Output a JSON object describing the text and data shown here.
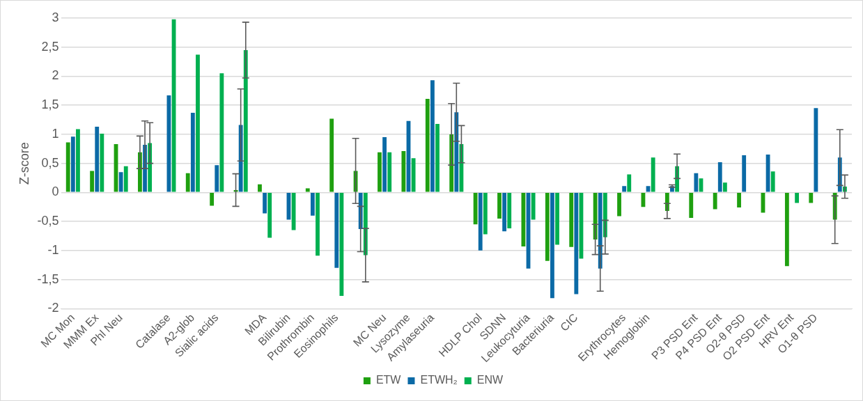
{
  "chart_data": {
    "type": "bar",
    "ylabel": "Z-score",
    "categories": [
      "MC Mon",
      "MMM Ex",
      "Phl Neu",
      null,
      "Catalase",
      "A2-glob",
      "Sialic acids",
      null,
      "MDA",
      "Bilirubin",
      "Prothrombin",
      "Eosinophils",
      null,
      "MC Neu",
      "Lysozyme",
      "Amylaseuria",
      null,
      "HDLP Chol",
      "SDNN",
      "Leukocyturia",
      "Bacteriuria",
      "CIC",
      null,
      "Erythrocytes",
      "Hemoglobin",
      null,
      "P3 PSD Ent",
      "P4 PSD Ent",
      "O2-θ PSD",
      "O2 PSD Ent",
      "HRV Ent",
      "O1-θ PSD",
      null
    ],
    "series": [
      {
        "name": "ETW",
        "color": "#1fa010",
        "values": [
          0.86,
          0.37,
          0.83,
          0.69,
          null,
          0.33,
          -0.23,
          0.04,
          0.14,
          null,
          0.07,
          1.27,
          0.37,
          0.69,
          0.71,
          1.61,
          1.0,
          -0.55,
          -0.45,
          -0.93,
          -1.18,
          -0.94,
          -0.81,
          -0.41,
          -0.25,
          -0.32,
          -0.44,
          -0.29,
          -0.26,
          -0.35,
          -1.27,
          -0.18,
          -0.47
        ],
        "errors": [
          null,
          null,
          null,
          0.28,
          null,
          null,
          null,
          0.28,
          null,
          null,
          null,
          null,
          0.56,
          null,
          null,
          null,
          0.53,
          null,
          null,
          null,
          null,
          null,
          0.26,
          null,
          null,
          0.13,
          null,
          null,
          null,
          null,
          null,
          null,
          0.41
        ]
      },
      {
        "name": "ETWH₂",
        "color": "#0b6aa6",
        "values": [
          0.96,
          1.13,
          0.35,
          0.82,
          1.67,
          1.37,
          0.47,
          1.16,
          -0.36,
          -0.47,
          -0.4,
          -1.3,
          -0.63,
          0.95,
          1.23,
          1.93,
          1.38,
          -1.0,
          -0.67,
          -1.31,
          -1.82,
          -1.75,
          -1.31,
          0.11,
          0.11,
          0.11,
          0.33,
          0.52,
          0.64,
          0.65,
          null,
          1.45,
          0.6
        ],
        "errors": [
          null,
          null,
          null,
          0.41,
          null,
          null,
          null,
          0.62,
          null,
          null,
          null,
          null,
          0.39,
          null,
          null,
          null,
          0.5,
          null,
          null,
          null,
          null,
          null,
          0.39,
          null,
          null,
          0.02,
          null,
          null,
          null,
          null,
          null,
          null,
          0.48
        ]
      },
      {
        "name": "ENW",
        "color": "#00b050",
        "values": [
          1.09,
          1.01,
          0.45,
          0.85,
          2.98,
          2.37,
          2.05,
          2.45,
          -0.78,
          -0.65,
          -1.09,
          -1.78,
          -1.08,
          0.69,
          0.59,
          1.18,
          0.83,
          -0.72,
          -0.62,
          -0.47,
          -0.9,
          -1.14,
          -0.77,
          0.31,
          0.6,
          0.45,
          0.24,
          0.17,
          null,
          0.36,
          -0.18,
          null,
          0.1
        ],
        "errors": [
          null,
          null,
          null,
          0.35,
          null,
          null,
          null,
          0.48,
          null,
          null,
          null,
          null,
          0.46,
          null,
          null,
          null,
          0.32,
          null,
          null,
          null,
          null,
          null,
          0.29,
          null,
          null,
          0.21,
          null,
          null,
          null,
          null,
          null,
          null,
          0.2
        ]
      }
    ],
    "ylim": [
      -2,
      3
    ],
    "yticks": [
      {
        "value": -2,
        "label": "-2"
      },
      {
        "value": -1.5,
        "label": "-1,5"
      },
      {
        "value": -1,
        "label": "-1"
      },
      {
        "value": -0.5,
        "label": "-0,5"
      },
      {
        "value": 0,
        "label": "0"
      },
      {
        "value": 0.5,
        "label": "0,5"
      },
      {
        "value": 1,
        "label": "1"
      },
      {
        "value": 1.5,
        "label": "1,5"
      },
      {
        "value": 2,
        "label": "2"
      },
      {
        "value": 2.5,
        "label": "2,5"
      },
      {
        "value": 3,
        "label": "3"
      }
    ],
    "grid": "y",
    "legend": "bottom"
  }
}
